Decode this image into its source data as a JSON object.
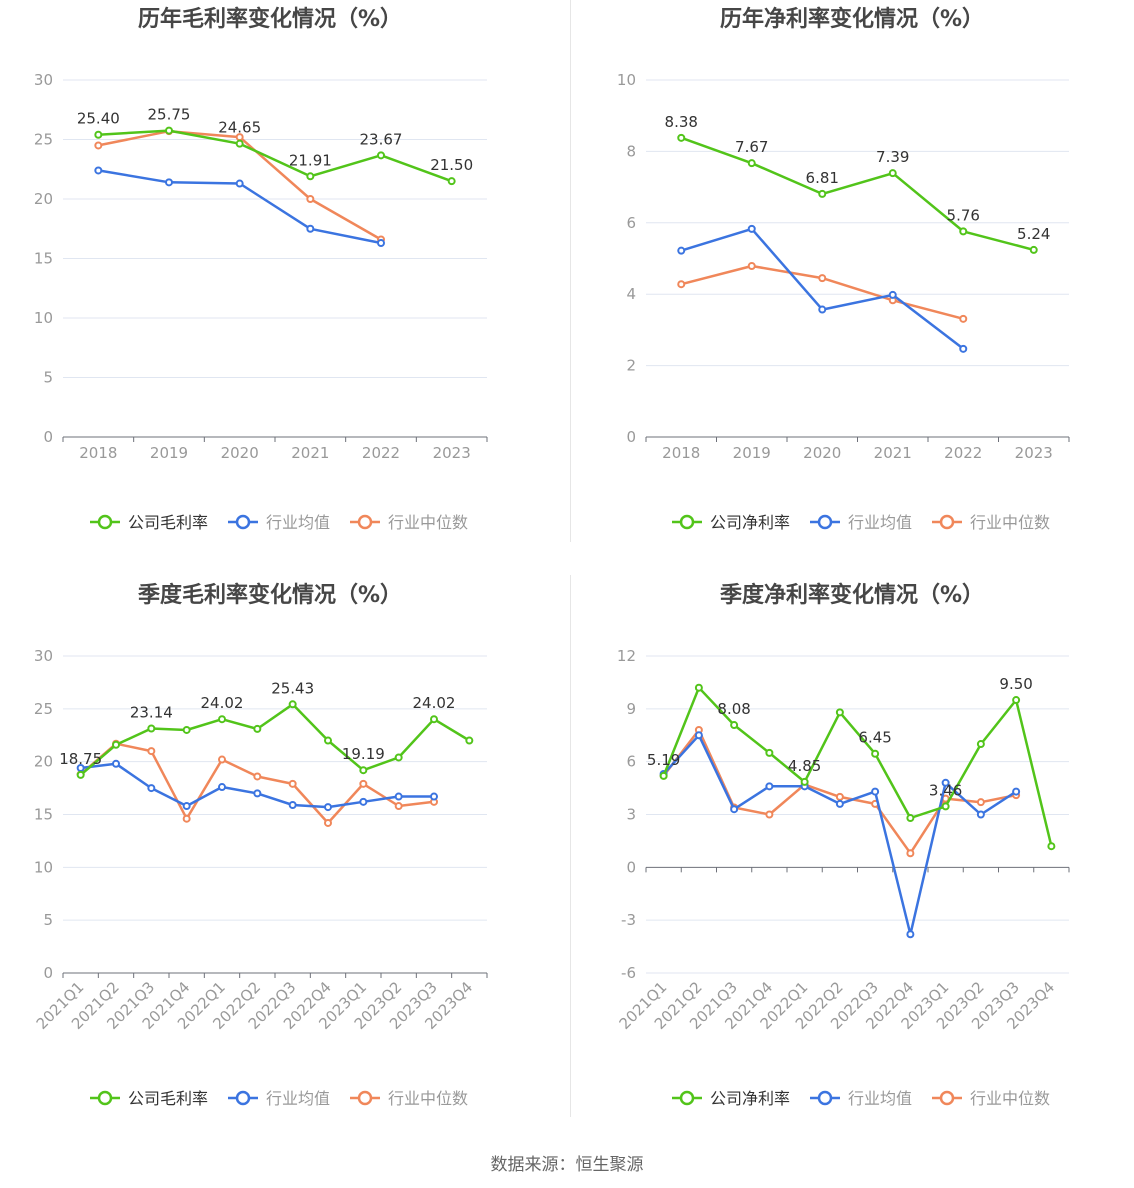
{
  "source_text": "数据来源：恒生聚源",
  "colors": {
    "company": "#52c41a",
    "avg": "#3b74e0",
    "median": "#f0875a",
    "grid": "#e0e6f1",
    "axis": "#6e7079",
    "label": "#333333",
    "tick": "#999999"
  },
  "chart_data": [
    {
      "type": "line",
      "title": "历年毛利率变化情况（%）",
      "categories": [
        "2018",
        "2019",
        "2020",
        "2021",
        "2022",
        "2023"
      ],
      "ylim": [
        0,
        30
      ],
      "yticks": [
        0,
        5,
        10,
        15,
        20,
        25,
        30
      ],
      "rotate_x_labels": false,
      "legend_position": "bottom",
      "series": [
        {
          "key": "company",
          "name": "公司毛利率",
          "values": [
            25.4,
            25.75,
            24.65,
            21.91,
            23.67,
            21.5
          ],
          "labels": [
            "25.40",
            "25.75",
            "24.65",
            "21.91",
            "23.67",
            "21.50"
          ]
        },
        {
          "key": "avg",
          "name": "行业均值",
          "values": [
            22.4,
            21.4,
            21.3,
            17.5,
            16.3,
            null
          ]
        },
        {
          "key": "median",
          "name": "行业中位数",
          "values": [
            24.5,
            25.7,
            25.2,
            20.0,
            16.6,
            null
          ]
        }
      ]
    },
    {
      "type": "line",
      "title": "历年净利率变化情况（%）",
      "categories": [
        "2018",
        "2019",
        "2020",
        "2021",
        "2022",
        "2023"
      ],
      "ylim": [
        0,
        10
      ],
      "yticks": [
        0,
        2,
        4,
        6,
        8,
        10
      ],
      "rotate_x_labels": false,
      "legend_position": "bottom",
      "series": [
        {
          "key": "company",
          "name": "公司净利率",
          "values": [
            8.38,
            7.67,
            6.81,
            7.39,
            5.76,
            5.24
          ],
          "labels": [
            "8.38",
            "7.67",
            "6.81",
            "7.39",
            "5.76",
            "5.24"
          ]
        },
        {
          "key": "avg",
          "name": "行业均值",
          "values": [
            5.22,
            5.83,
            3.57,
            3.98,
            2.47,
            null
          ]
        },
        {
          "key": "median",
          "name": "行业中位数",
          "values": [
            4.28,
            4.79,
            4.45,
            3.83,
            3.31,
            null
          ]
        }
      ]
    },
    {
      "type": "line",
      "title": "季度毛利率变化情况（%）",
      "categories": [
        "2021Q1",
        "2021Q2",
        "2021Q3",
        "2021Q4",
        "2022Q1",
        "2022Q2",
        "2022Q3",
        "2022Q4",
        "2023Q1",
        "2023Q2",
        "2023Q3",
        "2023Q4"
      ],
      "ylim": [
        0,
        30
      ],
      "yticks": [
        0,
        5,
        10,
        15,
        20,
        25,
        30
      ],
      "rotate_x_labels": true,
      "legend_position": "bottom",
      "series": [
        {
          "key": "company",
          "name": "公司毛利率",
          "values": [
            18.75,
            21.6,
            23.14,
            23.0,
            24.02,
            23.1,
            25.43,
            22.0,
            19.19,
            20.4,
            24.02,
            22.0
          ],
          "labels": [
            "18.75",
            null,
            "23.14",
            null,
            "24.02",
            null,
            "25.43",
            null,
            "19.19",
            null,
            "24.02",
            null
          ]
        },
        {
          "key": "avg",
          "name": "行业均值",
          "values": [
            19.4,
            19.8,
            17.5,
            15.8,
            17.6,
            17.0,
            15.9,
            15.7,
            16.2,
            16.7,
            16.7,
            null
          ]
        },
        {
          "key": "median",
          "name": "行业中位数",
          "values": [
            18.8,
            21.7,
            21.0,
            14.6,
            20.2,
            18.6,
            17.9,
            14.2,
            17.9,
            15.8,
            16.2,
            null
          ]
        }
      ]
    },
    {
      "type": "line",
      "title": "季度净利率变化情况（%）",
      "categories": [
        "2021Q1",
        "2021Q2",
        "2021Q3",
        "2021Q4",
        "2022Q1",
        "2022Q2",
        "2022Q3",
        "2022Q4",
        "2023Q1",
        "2023Q2",
        "2023Q3",
        "2023Q4"
      ],
      "ylim": [
        -6,
        12
      ],
      "yticks": [
        -6,
        -3,
        0,
        3,
        6,
        9,
        12
      ],
      "rotate_x_labels": true,
      "legend_position": "bottom",
      "series": [
        {
          "key": "company",
          "name": "公司净利率",
          "values": [
            5.19,
            10.2,
            8.08,
            6.5,
            4.85,
            8.8,
            6.45,
            2.8,
            3.46,
            7.0,
            9.5,
            1.2
          ],
          "labels": [
            "5.19",
            null,
            "8.08",
            null,
            "4.85",
            null,
            "6.45",
            null,
            "3.46",
            null,
            "9.50",
            null
          ]
        },
        {
          "key": "avg",
          "name": "行业均值",
          "values": [
            5.3,
            7.5,
            3.3,
            4.6,
            4.6,
            3.6,
            4.3,
            -3.8,
            4.8,
            3.0,
            4.3,
            null
          ]
        },
        {
          "key": "median",
          "name": "行业中位数",
          "values": [
            5.2,
            7.8,
            3.4,
            3.0,
            4.7,
            4.0,
            3.6,
            0.8,
            3.9,
            3.7,
            4.1,
            null
          ]
        }
      ]
    }
  ]
}
